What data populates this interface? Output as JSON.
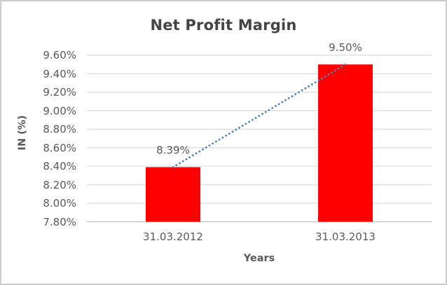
{
  "chart_data": {
    "type": "bar",
    "title": "Net Profit Margin",
    "xlabel": "Years",
    "ylabel": "IN (%)",
    "categories": [
      "31.03.2012",
      "31.03.2013"
    ],
    "values": [
      8.39,
      9.5
    ],
    "data_labels": [
      "8.39%",
      "9.50%"
    ],
    "ylim": [
      7.8,
      9.6
    ],
    "ytick_step": 0.2,
    "ytick_labels": [
      "7.80%",
      "8.00%",
      "8.20%",
      "8.40%",
      "8.60%",
      "8.80%",
      "9.00%",
      "9.20%",
      "9.40%",
      "9.60%"
    ],
    "grid": true,
    "legend": "none",
    "trendline": {
      "type": "linear",
      "style": "dotted"
    },
    "colors": {
      "bar": "#FF0000",
      "trendline": "#4E81BD",
      "gridline": "#D9D9D9",
      "axis_line": "#BFBFBF",
      "label_text": "#595959",
      "title_text": "#444444",
      "frame_border": "#CDCDCD"
    }
  }
}
